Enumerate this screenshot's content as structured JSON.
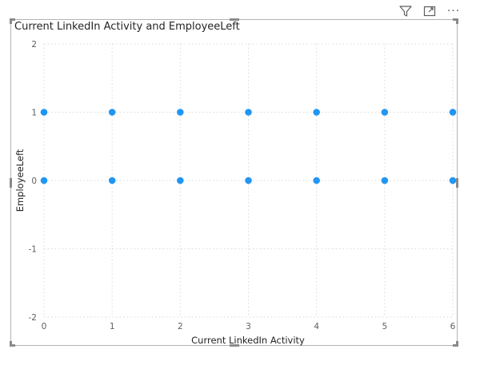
{
  "toolbar": {
    "icons": [
      "filter-icon",
      "focus-mode-icon",
      "more-options-icon"
    ],
    "more_label": "···"
  },
  "chart_data": {
    "type": "scatter",
    "title": "Current LinkedIn Activity and EmployeeLeft",
    "xlabel": "Current LinkedIn Activity",
    "ylabel": "EmployeeLeft",
    "xlim": [
      0,
      6
    ],
    "ylim": [
      -2,
      2
    ],
    "xticks": [
      0,
      1,
      2,
      3,
      4,
      5,
      6
    ],
    "yticks": [
      2,
      1,
      0,
      -1,
      -2
    ],
    "grid": true,
    "point_color": "#2196f3",
    "points": [
      {
        "x": 0,
        "y": 1
      },
      {
        "x": 1,
        "y": 1
      },
      {
        "x": 2,
        "y": 1
      },
      {
        "x": 3,
        "y": 1
      },
      {
        "x": 4,
        "y": 1
      },
      {
        "x": 5,
        "y": 1
      },
      {
        "x": 6,
        "y": 1
      },
      {
        "x": 0,
        "y": 0
      },
      {
        "x": 1,
        "y": 0
      },
      {
        "x": 2,
        "y": 0
      },
      {
        "x": 3,
        "y": 0
      },
      {
        "x": 4,
        "y": 0
      },
      {
        "x": 5,
        "y": 0
      },
      {
        "x": 6,
        "y": 0
      }
    ]
  }
}
